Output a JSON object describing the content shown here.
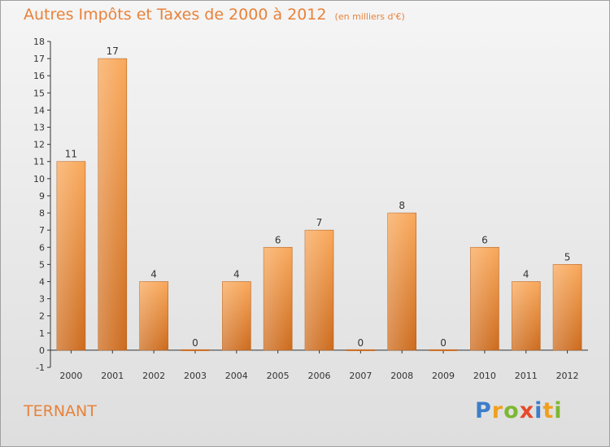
{
  "header": {
    "title": "Autres Impôts et Taxes de 2000 à 2012",
    "subtitle": "(en milliers d'€)"
  },
  "footer": {
    "city": "TERNANT",
    "logo_text": "Proxiti"
  },
  "colors": {
    "bar_top": "#f9a85a",
    "bar_bottom": "#cc6a1c",
    "title": "#e8823a",
    "axis": "#333333"
  },
  "logo_letters": [
    {
      "ch": "P",
      "color": "#3d7ec9"
    },
    {
      "ch": "r",
      "color": "#f0a020"
    },
    {
      "ch": "o",
      "color": "#7cb832"
    },
    {
      "ch": "x",
      "color": "#e84a2a"
    },
    {
      "ch": "i",
      "color": "#3d7ec9"
    },
    {
      "ch": "t",
      "color": "#f0a020"
    },
    {
      "ch": "i",
      "color": "#7cb832"
    }
  ],
  "chart_data": {
    "type": "bar",
    "title": "Autres Impôts et Taxes de 2000 à 2012",
    "subtitle": "(en milliers d'€)",
    "categories": [
      "2000",
      "2001",
      "2002",
      "2003",
      "2004",
      "2005",
      "2006",
      "2007",
      "2008",
      "2009",
      "2010",
      "2011",
      "2012"
    ],
    "values": [
      11,
      17,
      4,
      0,
      4,
      6,
      7,
      0,
      8,
      0,
      6,
      4,
      5
    ],
    "ylim": [
      -1,
      18
    ],
    "yticks": [
      -1,
      0,
      1,
      2,
      3,
      4,
      5,
      6,
      7,
      8,
      9,
      10,
      11,
      12,
      13,
      14,
      15,
      16,
      17,
      18
    ],
    "grid": false,
    "data_labels": true
  }
}
